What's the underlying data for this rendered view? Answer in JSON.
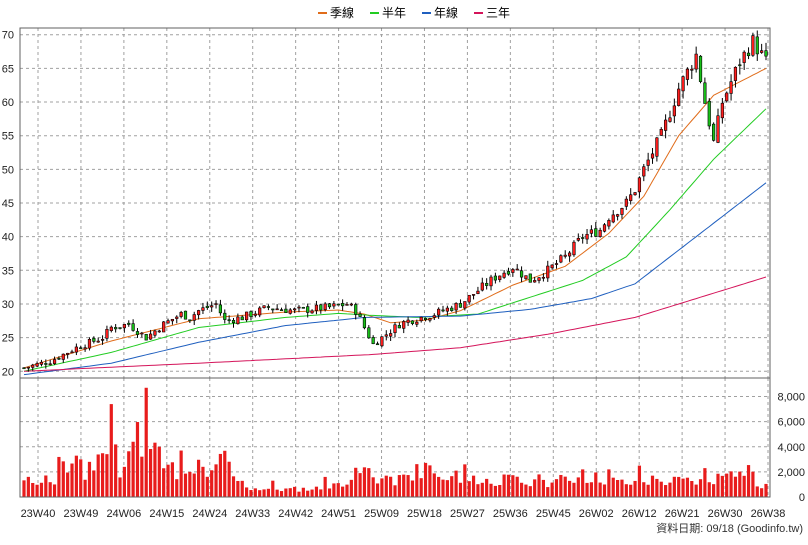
{
  "legend": [
    {
      "label": "季線",
      "color": "#e06c1a"
    },
    {
      "label": "半年",
      "color": "#22cc22"
    },
    {
      "label": "年線",
      "color": "#1f5fbf"
    },
    {
      "label": "三年",
      "color": "#d4145a"
    }
  ],
  "footer_label": "資料日期: 09/18  (Goodinfo.tw)",
  "chart_data": [
    {
      "type": "candlestick",
      "grid": true,
      "ylim": [
        19,
        71
      ],
      "y_ticks": [
        20,
        25,
        30,
        35,
        40,
        45,
        50,
        55,
        60,
        65,
        70
      ],
      "x_tick_labels": [
        "23W40",
        "23W49",
        "24W06",
        "24W15",
        "24W24",
        "24W33",
        "24W42",
        "24W51",
        "25W09",
        "25W18",
        "25W27",
        "25W36",
        "25W45",
        "26W02",
        "26W12",
        "26W21",
        "26W30",
        "26W38"
      ],
      "close_anchors": [
        [
          0,
          20.5
        ],
        [
          6,
          21.5
        ],
        [
          12,
          23.5
        ],
        [
          18,
          25
        ],
        [
          20,
          26.5
        ],
        [
          24,
          27
        ],
        [
          28,
          25
        ],
        [
          32,
          27
        ],
        [
          36,
          28.5
        ],
        [
          38,
          28
        ],
        [
          40,
          29
        ],
        [
          44,
          30
        ],
        [
          46,
          27.5
        ],
        [
          50,
          28
        ],
        [
          56,
          29.5
        ],
        [
          62,
          29
        ],
        [
          70,
          29.5
        ],
        [
          74,
          30
        ],
        [
          76,
          29
        ],
        [
          80,
          24
        ],
        [
          82,
          25
        ],
        [
          86,
          27
        ],
        [
          88,
          27.5
        ],
        [
          94,
          28.5
        ],
        [
          100,
          30
        ],
        [
          104,
          32
        ],
        [
          108,
          34
        ],
        [
          112,
          35.5
        ],
        [
          116,
          33.5
        ],
        [
          120,
          35
        ],
        [
          124,
          37
        ],
        [
          128,
          40
        ],
        [
          132,
          41
        ],
        [
          134,
          43
        ],
        [
          138,
          45
        ],
        [
          140,
          47
        ],
        [
          142,
          50
        ],
        [
          146,
          55
        ],
        [
          150,
          62
        ],
        [
          154,
          67
        ],
        [
          156,
          60
        ],
        [
          158,
          54
        ],
        [
          160,
          60
        ],
        [
          164,
          66
        ],
        [
          167,
          69
        ],
        [
          170,
          66
        ]
      ],
      "moving_averages": [
        {
          "name": "季線",
          "points": [
            [
              0,
              20.5
            ],
            [
              20,
              24.5
            ],
            [
              40,
              27.8
            ],
            [
              60,
              28.8
            ],
            [
              72,
              29.1
            ],
            [
              78,
              28.5
            ],
            [
              84,
              27.2
            ],
            [
              92,
              27.6
            ],
            [
              100,
              29
            ],
            [
              112,
              32.8
            ],
            [
              124,
              35.6
            ],
            [
              134,
              40.5
            ],
            [
              142,
              46
            ],
            [
              150,
              55
            ],
            [
              158,
              61
            ],
            [
              170,
              65
            ]
          ]
        },
        {
          "name": "半年",
          "points": [
            [
              0,
              20
            ],
            [
              20,
              22.8
            ],
            [
              40,
              26.5
            ],
            [
              60,
              28
            ],
            [
              72,
              28.6
            ],
            [
              80,
              28.3
            ],
            [
              90,
              28
            ],
            [
              104,
              28.5
            ],
            [
              116,
              31
            ],
            [
              128,
              33.5
            ],
            [
              138,
              37
            ],
            [
              148,
              44
            ],
            [
              158,
              51.5
            ],
            [
              170,
              59
            ]
          ]
        },
        {
          "name": "年線",
          "points": [
            [
              0,
              19.5
            ],
            [
              20,
              21.2
            ],
            [
              40,
              24.3
            ],
            [
              60,
              26.8
            ],
            [
              78,
              28
            ],
            [
              100,
              28.2
            ],
            [
              116,
              29.2
            ],
            [
              130,
              30.8
            ],
            [
              140,
              33
            ],
            [
              150,
              38
            ],
            [
              160,
              43
            ],
            [
              170,
              48
            ]
          ]
        },
        {
          "name": "三年",
          "points": [
            [
              0,
              20
            ],
            [
              40,
              21.2
            ],
            [
              80,
              22.5
            ],
            [
              100,
              23.5
            ],
            [
              120,
              25.5
            ],
            [
              140,
              28
            ],
            [
              155,
              31
            ],
            [
              170,
              34
            ]
          ]
        }
      ]
    },
    {
      "type": "bar",
      "grid": true,
      "ylim": [
        0,
        9000
      ],
      "y_tick_labels": [
        "0",
        "2,000",
        "4,000",
        "6,000",
        "8,000"
      ],
      "volume_profile": [
        [
          0,
          1200
        ],
        [
          6,
          1500
        ],
        [
          9,
          3200
        ],
        [
          10,
          1800
        ],
        [
          12,
          2500
        ],
        [
          14,
          1600
        ],
        [
          16,
          2200
        ],
        [
          18,
          4200
        ],
        [
          19,
          2800
        ],
        [
          20,
          7500
        ],
        [
          21,
          3500
        ],
        [
          22,
          2300
        ],
        [
          24,
          3800
        ],
        [
          26,
          5600
        ],
        [
          27,
          2900
        ],
        [
          28,
          8700
        ],
        [
          29,
          4200
        ],
        [
          30,
          3500
        ],
        [
          32,
          3300
        ],
        [
          34,
          2200
        ],
        [
          36,
          1800
        ],
        [
          38,
          1600
        ],
        [
          40,
          2500
        ],
        [
          42,
          1500
        ],
        [
          46,
          3100
        ],
        [
          48,
          1500
        ],
        [
          52,
          700
        ],
        [
          60,
          600
        ],
        [
          70,
          700
        ],
        [
          78,
          2100
        ],
        [
          80,
          1600
        ],
        [
          84,
          1200
        ],
        [
          88,
          1600
        ],
        [
          92,
          2600
        ],
        [
          96,
          1300
        ],
        [
          104,
          1200
        ],
        [
          112,
          1400
        ],
        [
          116,
          1000
        ],
        [
          120,
          1200
        ],
        [
          124,
          1400
        ],
        [
          128,
          1600
        ],
        [
          132,
          1500
        ],
        [
          136,
          1200
        ],
        [
          140,
          1000
        ],
        [
          146,
          1200
        ],
        [
          150,
          1300
        ],
        [
          156,
          1200
        ],
        [
          160,
          1700
        ],
        [
          162,
          2800
        ],
        [
          164,
          1800
        ],
        [
          166,
          2500
        ],
        [
          168,
          900
        ],
        [
          170,
          800
        ]
      ],
      "volume_highlights": [
        [
          7,
          1000
        ],
        [
          13,
          3000
        ],
        [
          15,
          2800
        ],
        [
          20,
          7400
        ],
        [
          23,
          2400
        ],
        [
          25,
          4400
        ],
        [
          28,
          8700
        ],
        [
          31,
          4000
        ],
        [
          36,
          3700
        ],
        [
          44,
          2600
        ],
        [
          57,
          1300
        ],
        [
          69,
          1600
        ],
        [
          79,
          2300
        ],
        [
          83,
          1700
        ],
        [
          91,
          1500
        ],
        [
          95,
          1600
        ],
        [
          99,
          2100
        ],
        [
          101,
          2600
        ],
        [
          103,
          1700
        ],
        [
          118,
          1800
        ],
        [
          128,
          2200
        ],
        [
          134,
          2200
        ],
        [
          141,
          2500
        ],
        [
          144,
          1700
        ],
        [
          156,
          2300
        ]
      ]
    }
  ]
}
